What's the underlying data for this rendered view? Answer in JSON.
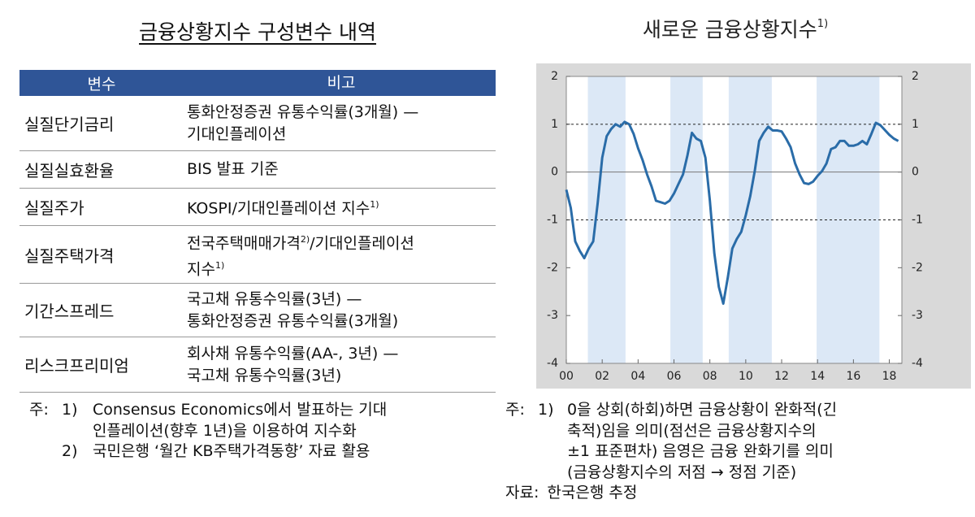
{
  "table_title": "금융상황지수 구성변수 내역",
  "table": {
    "header": [
      "변수",
      "비고"
    ],
    "rows": [
      {
        "variable": "실질단기금리",
        "lines": [
          [
            {
              "text": "통화안정증권 유통수익률(3개월) —"
            }
          ],
          [
            {
              "text": "기대인플레이션"
            }
          ]
        ]
      },
      {
        "variable": "실질실효환율",
        "lines": [
          [
            {
              "text": "BIS 발표 기준"
            }
          ]
        ]
      },
      {
        "variable": "실질주가",
        "lines": [
          [
            {
              "text": "KOSPI/기대인플레이션 지수"
            },
            {
              "sup": "1)"
            }
          ]
        ]
      },
      {
        "variable": "실질주택가격",
        "lines": [
          [
            {
              "text": "전국주택매매가격"
            },
            {
              "sup": "2)"
            },
            {
              "text": "/기대인플레이션"
            }
          ],
          [
            {
              "text": "지수"
            },
            {
              "sup": "1)"
            }
          ]
        ]
      },
      {
        "variable": "기간스프레드",
        "lines": [
          [
            {
              "text": "국고채 유통수익률(3년) —"
            }
          ],
          [
            {
              "text": "통화안정증권 유통수익률(3개월)"
            }
          ]
        ]
      },
      {
        "variable": "리스크프리미엄",
        "lines": [
          [
            {
              "text": "회사채 유통수익률(AA-, 3년) —"
            }
          ],
          [
            {
              "text": "국고채 유통수익률(3년)"
            }
          ]
        ]
      }
    ]
  },
  "table_notes": {
    "label": "주:",
    "items": [
      {
        "num": "1)",
        "lines": [
          "Consensus Economics에서 발표하는 기대",
          "인플레이션(향후 1년)을 이용하여 지수화"
        ]
      },
      {
        "num": "2)",
        "lines": [
          "국민은행 ‘월간 KB주택가격동향’ 자료 활용"
        ]
      }
    ]
  },
  "chart_data": {
    "type": "line",
    "title": "새로운 금융상황지수",
    "title_note": "1)",
    "color": "#2a6ca8",
    "x": [
      2000,
      2000.25,
      2000.5,
      2000.75,
      2001,
      2001.25,
      2001.5,
      2001.75,
      2002,
      2002.25,
      2002.5,
      2002.75,
      2003,
      2003.25,
      2003.5,
      2003.75,
      2004,
      2004.25,
      2004.5,
      2004.75,
      2005,
      2005.25,
      2005.5,
      2005.75,
      2006,
      2006.25,
      2006.5,
      2006.75,
      2007,
      2007.25,
      2007.5,
      2007.75,
      2008,
      2008.25,
      2008.5,
      2008.75,
      2009,
      2009.25,
      2009.5,
      2009.75,
      2010,
      2010.25,
      2010.5,
      2010.75,
      2011,
      2011.25,
      2011.5,
      2011.75,
      2012,
      2012.25,
      2012.5,
      2012.75,
      2013,
      2013.25,
      2013.5,
      2013.75,
      2014,
      2014.25,
      2014.5,
      2014.75,
      2015,
      2015.25,
      2015.5,
      2015.75,
      2016,
      2016.25,
      2016.5,
      2016.75,
      2017,
      2017.25,
      2017.5,
      2017.75,
      2018,
      2018.25,
      2018.5
    ],
    "values": [
      -0.37,
      -0.75,
      -1.45,
      -1.65,
      -1.8,
      -1.6,
      -1.45,
      -0.65,
      0.3,
      0.75,
      0.9,
      1.0,
      0.95,
      1.05,
      1.0,
      0.8,
      0.5,
      0.25,
      -0.05,
      -0.3,
      -0.6,
      -0.63,
      -0.66,
      -0.6,
      -0.45,
      -0.25,
      -0.05,
      0.35,
      0.82,
      0.7,
      0.65,
      0.3,
      -0.6,
      -1.7,
      -2.4,
      -2.75,
      -2.2,
      -1.6,
      -1.4,
      -1.25,
      -0.9,
      -0.5,
      0.02,
      0.65,
      0.82,
      0.95,
      0.87,
      0.87,
      0.85,
      0.7,
      0.52,
      0.18,
      -0.05,
      -0.23,
      -0.25,
      -0.2,
      -0.08,
      0.02,
      0.18,
      0.48,
      0.52,
      0.65,
      0.65,
      0.55,
      0.55,
      0.58,
      0.65,
      0.58,
      0.8,
      1.03,
      0.98,
      0.88,
      0.78,
      0.7,
      0.65
    ],
    "xlim": [
      2000,
      2018.7
    ],
    "xticks": [
      {
        "value": 2000,
        "label": "00"
      },
      {
        "value": 2002,
        "label": "02"
      },
      {
        "value": 2004,
        "label": "04"
      },
      {
        "value": 2006,
        "label": "06"
      },
      {
        "value": 2008,
        "label": "08"
      },
      {
        "value": 2010,
        "label": "10"
      },
      {
        "value": 2012,
        "label": "12"
      },
      {
        "value": 2014,
        "label": "14"
      },
      {
        "value": 2016,
        "label": "16"
      },
      {
        "value": 2018,
        "label": "18"
      }
    ],
    "ylim": [
      -4,
      2
    ],
    "yticks": [
      -4,
      -3,
      -2,
      -1,
      0,
      1,
      2
    ],
    "shaded_periods": [
      [
        2001.2,
        2003.3
      ],
      [
        2005.8,
        2007.6
      ],
      [
        2009.05,
        2011.45
      ],
      [
        2013.95,
        2017.45
      ]
    ],
    "reference_lines": [
      1,
      -1
    ]
  },
  "chart_notes": {
    "label": "주:",
    "items": [
      {
        "num": "1)",
        "lines": [
          "0을 상회(하회)하면 금융상황이 완화적(긴",
          "축적)임을 의미(점선은 금융상황지수의",
          "±1 표준편차) 음영은 금융 완화기를 의미",
          "(금융상황지수의 저점 → 정점 기준)"
        ]
      }
    ],
    "source_label": "자료:",
    "source": "한국은행 추정"
  }
}
